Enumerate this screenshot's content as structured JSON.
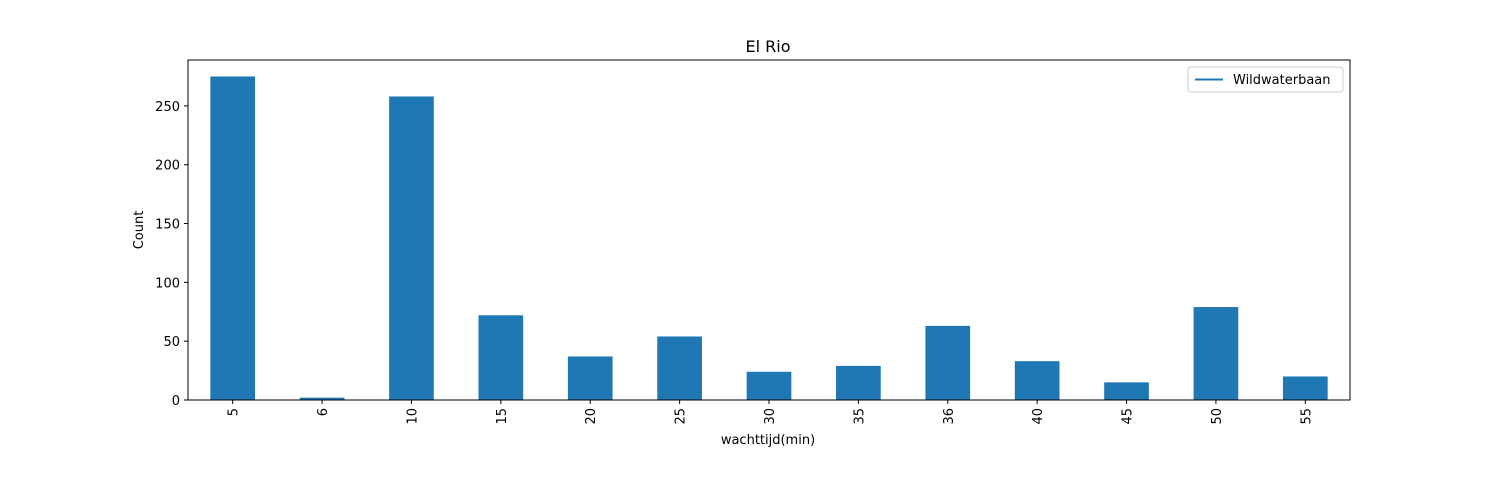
{
  "chart_data": {
    "type": "bar",
    "title": "El Rio",
    "xlabel": "wachttijd(min)",
    "ylabel": "Count",
    "categories": [
      "5",
      "6",
      "10",
      "15",
      "20",
      "25",
      "30",
      "35",
      "36",
      "40",
      "45",
      "50",
      "55"
    ],
    "series": [
      {
        "name": "Wildwaterbaan",
        "values": [
          275,
          2,
          258,
          72,
          37,
          54,
          24,
          29,
          63,
          33,
          15,
          79,
          20
        ],
        "color": "#1f77b4"
      }
    ],
    "ylim": [
      0,
      289
    ],
    "yticks": [
      0,
      50,
      100,
      150,
      200,
      250
    ],
    "grid": false,
    "legend_position": "top-right",
    "x_tick_rotation": "vertical"
  }
}
